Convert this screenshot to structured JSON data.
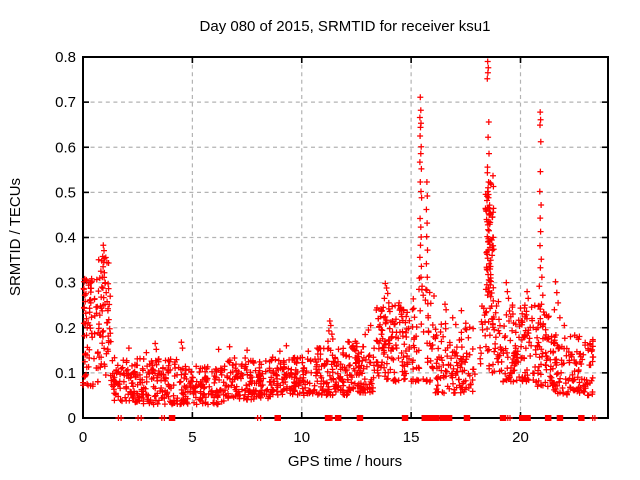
{
  "window": {
    "background": "#ffffff"
  },
  "chart_data": {
    "type": "scatter",
    "title": "Day 080 of 2015, SRMTID for receiver ksu1",
    "xlabel": "GPS time / hours",
    "ylabel": "SRMTID / TECUs",
    "xlim": [
      0,
      24
    ],
    "ylim": [
      0,
      0.8
    ],
    "grid": true,
    "legend": "none",
    "marker": "plus",
    "marker_color": "#ff0000",
    "xticks": [
      0,
      5,
      10,
      15,
      20
    ],
    "xtick_labels": [
      "0",
      "5",
      "10",
      "15",
      "20"
    ],
    "yticks": [
      0,
      0.1,
      0.2,
      0.3,
      0.4,
      0.5,
      0.6,
      0.7,
      0.8
    ],
    "ytick_labels": [
      "0",
      "0.1",
      "0.2",
      "0.3",
      "0.4",
      "0.5",
      "0.6",
      "0.7",
      "0.8"
    ],
    "notable_points": [
      [
        0.93,
        0.383
      ],
      [
        0.96,
        0.371
      ],
      [
        0.9,
        0.358
      ],
      [
        0.95,
        0.345
      ],
      [
        0.92,
        0.335
      ],
      [
        0.98,
        0.322
      ],
      [
        0.88,
        0.312
      ],
      [
        1.02,
        0.3
      ],
      [
        0.86,
        0.29
      ],
      [
        1.06,
        0.278
      ],
      [
        0.83,
        0.268
      ],
      [
        1.1,
        0.258
      ],
      [
        0.8,
        0.248
      ],
      [
        1.14,
        0.238
      ],
      [
        0.77,
        0.228
      ],
      [
        1.18,
        0.218
      ],
      [
        0.73,
        0.208
      ],
      [
        1.22,
        0.198
      ],
      [
        0.05,
        0.302
      ],
      [
        0.03,
        0.287
      ],
      [
        0.08,
        0.272
      ],
      [
        0.1,
        0.258
      ],
      [
        0.06,
        0.243
      ],
      [
        0.13,
        0.232
      ],
      [
        0.16,
        0.22
      ],
      [
        0.04,
        0.21
      ],
      [
        0.19,
        0.2
      ],
      [
        2.1,
        0.155
      ],
      [
        2.9,
        0.145
      ],
      [
        3.3,
        0.165
      ],
      [
        3.35,
        0.152
      ],
      [
        4.5,
        0.168
      ],
      [
        4.55,
        0.155
      ],
      [
        6.2,
        0.152
      ],
      [
        6.7,
        0.158
      ],
      [
        7.5,
        0.15
      ],
      [
        9.0,
        0.148
      ],
      [
        9.3,
        0.16
      ],
      [
        10.3,
        0.148
      ],
      [
        10.8,
        0.155
      ],
      [
        11.28,
        0.215
      ],
      [
        11.33,
        0.205
      ],
      [
        11.24,
        0.193
      ],
      [
        11.38,
        0.186
      ],
      [
        11.42,
        0.175
      ],
      [
        11.2,
        0.17
      ],
      [
        12.9,
        0.185
      ],
      [
        13.05,
        0.195
      ],
      [
        13.15,
        0.205
      ],
      [
        13.6,
        0.225
      ],
      [
        13.73,
        0.245
      ],
      [
        13.78,
        0.265
      ],
      [
        13.82,
        0.298
      ],
      [
        13.88,
        0.288
      ],
      [
        13.93,
        0.276
      ],
      [
        13.98,
        0.255
      ],
      [
        14.03,
        0.236
      ],
      [
        14.15,
        0.215
      ],
      [
        14.45,
        0.255
      ],
      [
        14.5,
        0.242
      ],
      [
        14.55,
        0.23
      ],
      [
        15.42,
        0.711
      ],
      [
        15.44,
        0.682
      ],
      [
        15.4,
        0.666
      ],
      [
        15.45,
        0.653
      ],
      [
        15.43,
        0.644
      ],
      [
        15.41,
        0.625
      ],
      [
        15.46,
        0.601
      ],
      [
        15.44,
        0.586
      ],
      [
        15.4,
        0.567
      ],
      [
        15.47,
        0.552
      ],
      [
        15.42,
        0.523
      ],
      [
        15.45,
        0.502
      ],
      [
        15.48,
        0.488
      ],
      [
        15.41,
        0.442
      ],
      [
        15.44,
        0.423
      ],
      [
        15.46,
        0.401
      ],
      [
        15.43,
        0.383
      ],
      [
        15.4,
        0.356
      ],
      [
        15.47,
        0.336
      ],
      [
        15.45,
        0.312
      ],
      [
        15.38,
        0.31
      ],
      [
        15.5,
        0.292
      ],
      [
        15.36,
        0.285
      ],
      [
        15.55,
        0.272
      ],
      [
        15.72,
        0.523
      ],
      [
        15.74,
        0.492
      ],
      [
        15.7,
        0.462
      ],
      [
        15.73,
        0.432
      ],
      [
        15.71,
        0.402
      ],
      [
        15.75,
        0.372
      ],
      [
        15.7,
        0.342
      ],
      [
        15.74,
        0.312
      ],
      [
        15.72,
        0.283
      ],
      [
        15.76,
        0.253
      ],
      [
        15.78,
        0.222
      ],
      [
        15.8,
        0.19
      ],
      [
        15.85,
        0.165
      ],
      [
        16.55,
        0.252
      ],
      [
        16.6,
        0.24
      ],
      [
        16.9,
        0.222
      ],
      [
        17.3,
        0.238
      ],
      [
        17.5,
        0.21
      ],
      [
        18.5,
        0.79
      ],
      [
        18.53,
        0.776
      ],
      [
        18.51,
        0.765
      ],
      [
        18.48,
        0.752
      ],
      [
        18.55,
        0.656
      ],
      [
        18.52,
        0.622
      ],
      [
        18.56,
        0.586
      ],
      [
        18.49,
        0.556
      ],
      [
        18.54,
        0.523
      ],
      [
        18.5,
        0.502
      ],
      [
        18.47,
        0.482
      ],
      [
        18.53,
        0.466
      ],
      [
        18.58,
        0.452
      ],
      [
        18.45,
        0.44
      ],
      [
        18.51,
        0.428
      ],
      [
        18.56,
        0.415
      ],
      [
        18.48,
        0.402
      ],
      [
        18.53,
        0.39
      ],
      [
        18.6,
        0.378
      ],
      [
        18.44,
        0.366
      ],
      [
        18.5,
        0.354
      ],
      [
        18.57,
        0.342
      ],
      [
        18.46,
        0.33
      ],
      [
        18.52,
        0.318
      ],
      [
        18.55,
        0.306
      ],
      [
        18.62,
        0.295
      ],
      [
        18.42,
        0.285
      ],
      [
        19.35,
        0.3
      ],
      [
        19.4,
        0.28
      ],
      [
        19.45,
        0.265
      ],
      [
        20.2,
        0.25
      ],
      [
        20.3,
        0.28
      ],
      [
        20.35,
        0.265
      ],
      [
        20.9,
        0.678
      ],
      [
        20.92,
        0.661
      ],
      [
        20.89,
        0.649
      ],
      [
        20.93,
        0.612
      ],
      [
        20.91,
        0.546
      ],
      [
        20.88,
        0.502
      ],
      [
        20.94,
        0.472
      ],
      [
        20.9,
        0.443
      ],
      [
        20.92,
        0.413
      ],
      [
        20.89,
        0.382
      ],
      [
        20.95,
        0.352
      ],
      [
        20.91,
        0.333
      ],
      [
        20.98,
        0.312
      ],
      [
        20.86,
        0.292
      ],
      [
        21.02,
        0.272
      ],
      [
        20.96,
        0.252
      ],
      [
        21.06,
        0.235
      ],
      [
        21.6,
        0.302
      ],
      [
        21.66,
        0.278
      ],
      [
        21.72,
        0.255
      ],
      [
        21.55,
        0.24
      ],
      [
        21.8,
        0.222
      ],
      [
        22.0,
        0.205
      ],
      [
        23.1,
        0.15
      ],
      [
        23.18,
        0.162
      ],
      [
        23.25,
        0.148
      ],
      [
        23.3,
        0.135
      ]
    ],
    "dense_clusters": [
      {
        "x0": 0.0,
        "x1": 0.55,
        "y0": 0.07,
        "y1": 0.31,
        "n": 55,
        "bias": 1.2
      },
      {
        "x0": 0.55,
        "x1": 1.3,
        "y0": 0.08,
        "y1": 0.36,
        "n": 60,
        "bias": 1.6
      },
      {
        "x0": 1.3,
        "x1": 2.6,
        "y0": 0.035,
        "y1": 0.135,
        "n": 95,
        "bias": 1.3
      },
      {
        "x0": 2.6,
        "x1": 4.3,
        "y0": 0.03,
        "y1": 0.135,
        "n": 110,
        "bias": 1.4
      },
      {
        "x0": 4.3,
        "x1": 6.6,
        "y0": 0.03,
        "y1": 0.115,
        "n": 150,
        "bias": 1.3
      },
      {
        "x0": 6.6,
        "x1": 8.6,
        "y0": 0.04,
        "y1": 0.135,
        "n": 135,
        "bias": 1.3
      },
      {
        "x0": 8.6,
        "x1": 10.6,
        "y0": 0.05,
        "y1": 0.135,
        "n": 135,
        "bias": 1.2
      },
      {
        "x0": 10.6,
        "x1": 12.1,
        "y0": 0.05,
        "y1": 0.155,
        "n": 110,
        "bias": 1.2
      },
      {
        "x0": 12.1,
        "x1": 13.3,
        "y0": 0.055,
        "y1": 0.17,
        "n": 95,
        "bias": 1.2
      },
      {
        "x0": 13.3,
        "x1": 14.95,
        "y0": 0.08,
        "y1": 0.25,
        "n": 130,
        "bias": 1.3
      },
      {
        "x0": 15.0,
        "x1": 16.05,
        "y0": 0.08,
        "y1": 0.3,
        "n": 55,
        "bias": 1.5
      },
      {
        "x0": 16.1,
        "x1": 17.95,
        "y0": 0.055,
        "y1": 0.21,
        "n": 120,
        "bias": 1.4
      },
      {
        "x0": 18.4,
        "x1": 18.8,
        "y0": 0.27,
        "y1": 0.55,
        "n": 60,
        "bias": 1.0
      },
      {
        "x0": 18.15,
        "x1": 19.15,
        "y0": 0.1,
        "y1": 0.27,
        "n": 60,
        "bias": 1.2
      },
      {
        "x0": 19.2,
        "x1": 20.7,
        "y0": 0.08,
        "y1": 0.26,
        "n": 115,
        "bias": 1.4
      },
      {
        "x0": 20.7,
        "x1": 21.3,
        "y0": 0.07,
        "y1": 0.25,
        "n": 55,
        "bias": 1.3
      },
      {
        "x0": 21.35,
        "x1": 23.35,
        "y0": 0.05,
        "y1": 0.185,
        "n": 140,
        "bias": 1.3
      }
    ],
    "zero_axis_squares_hours": [
      4.07,
      8.9,
      11.2,
      11.66,
      12.66,
      14.72,
      15.62,
      15.9,
      16.14,
      16.45,
      16.73,
      17.55,
      19.2,
      20.08,
      20.32,
      21.26,
      21.8,
      22.78
    ],
    "zero_axis_plus_hours": [
      1.62,
      1.74,
      2.52,
      2.66,
      3.6,
      3.72,
      7.98,
      8.12,
      11.38,
      19.42,
      19.52,
      23.3,
      23.4
    ]
  }
}
